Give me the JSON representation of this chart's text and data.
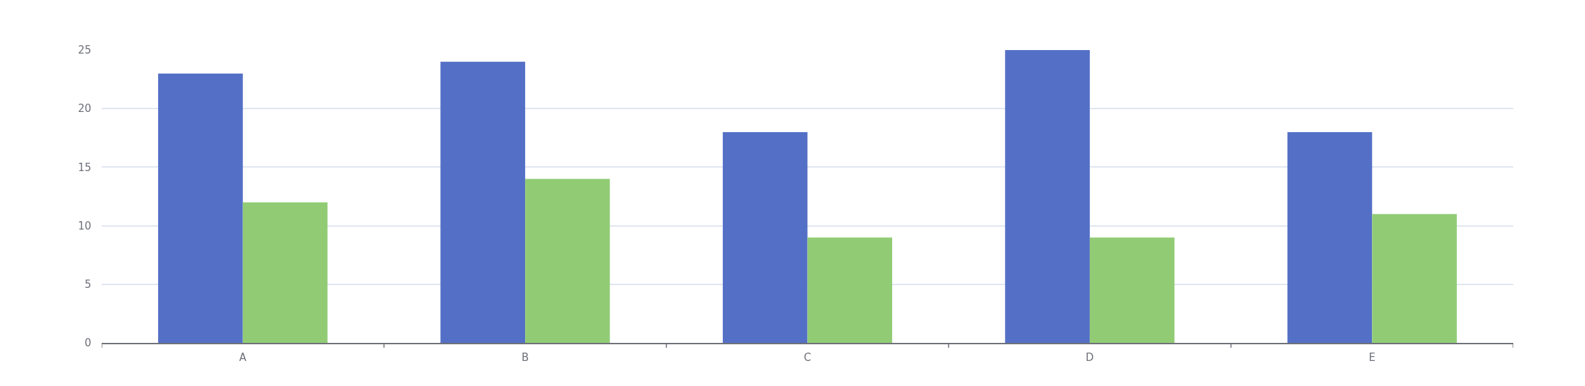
{
  "chart_data": {
    "type": "bar",
    "categories": [
      "A",
      "B",
      "C",
      "D",
      "E"
    ],
    "series": [
      {
        "color": "#5470c6",
        "values": [
          23,
          24,
          18,
          25,
          18
        ]
      },
      {
        "color": "#91cc75",
        "values": [
          12,
          14,
          9,
          9,
          11
        ]
      }
    ],
    "ylim": [
      0,
      25
    ],
    "yticks": [
      0,
      5,
      10,
      15,
      20,
      25
    ],
    "grid": "y"
  }
}
